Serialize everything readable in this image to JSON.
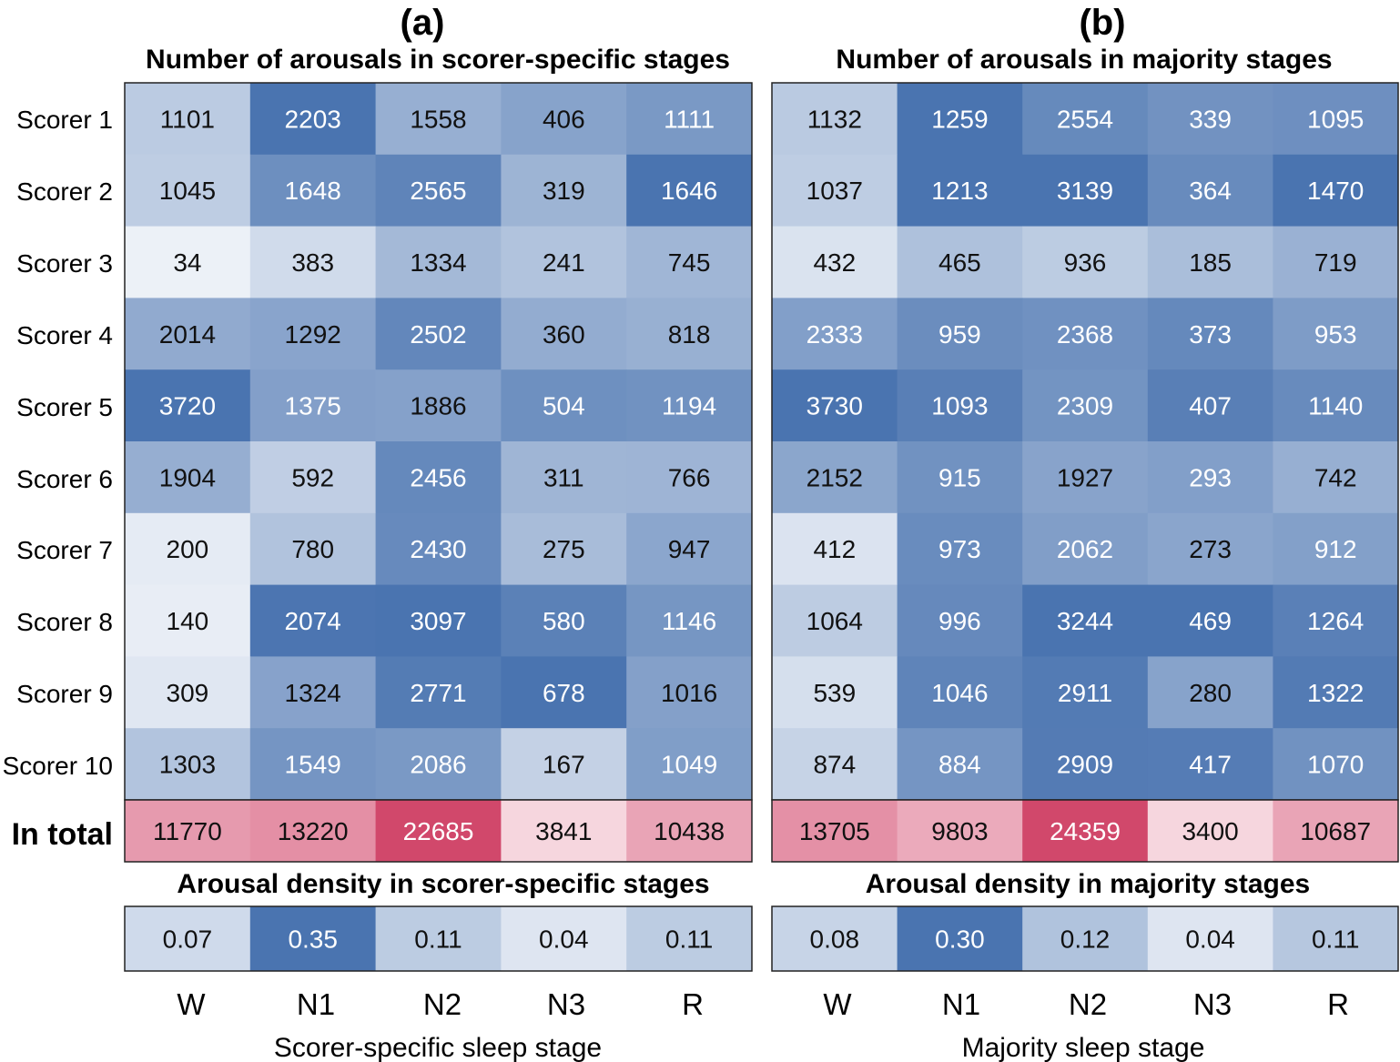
{
  "figure": {
    "panels": [
      {
        "letter": "(a)",
        "title_counts": "Number of arousals in scorer-specific stages",
        "title_density": "Arousal density in scorer-specific stages",
        "xlabel": "Scorer-specific sleep stage"
      },
      {
        "letter": "(b)",
        "title_counts": "Number of arousals in majority stages",
        "title_density": "Arousal density in majority stages",
        "xlabel": "Majority sleep stage"
      }
    ],
    "row_labels": [
      "Scorer 1",
      "Scorer 2",
      "Scorer 3",
      "Scorer 4",
      "Scorer 5",
      "Scorer 6",
      "Scorer 7",
      "Scorer 8",
      "Scorer 9",
      "Scorer 10"
    ],
    "total_label": "In total",
    "stages": [
      "W",
      "N1",
      "N2",
      "N3",
      "R"
    ]
  },
  "chart_data": [
    {
      "type": "heatmap",
      "title": "Number of arousals in scorer-specific stages",
      "categories": [
        "W",
        "N1",
        "N2",
        "N3",
        "R"
      ],
      "rows": [
        "Scorer 1",
        "Scorer 2",
        "Scorer 3",
        "Scorer 4",
        "Scorer 5",
        "Scorer 6",
        "Scorer 7",
        "Scorer 8",
        "Scorer 9",
        "Scorer 10"
      ],
      "values": [
        [
          1101,
          2203,
          1558,
          406,
          1111
        ],
        [
          1045,
          1648,
          2565,
          319,
          1646
        ],
        [
          34,
          383,
          1334,
          241,
          745
        ],
        [
          2014,
          1292,
          2502,
          360,
          818
        ],
        [
          3720,
          1375,
          1886,
          504,
          1194
        ],
        [
          1904,
          592,
          2456,
          311,
          766
        ],
        [
          200,
          780,
          2430,
          275,
          947
        ],
        [
          140,
          2074,
          3097,
          580,
          1146
        ],
        [
          309,
          1324,
          2771,
          678,
          1016
        ],
        [
          1303,
          1549,
          2086,
          167,
          1049
        ]
      ],
      "totals": [
        11770,
        13220,
        22685,
        3841,
        10438
      ],
      "density_title": "Arousal density in scorer-specific stages",
      "density": [
        "0.07",
        "0.35",
        "0.11",
        "0.04",
        "0.11"
      ],
      "xlabel": "Scorer-specific sleep stage",
      "colormap": {
        "low": "#eef2f8",
        "high": "#4a74b0",
        "total_low": "#fbe9ee",
        "total_high": "#d1486b"
      }
    },
    {
      "type": "heatmap",
      "title": "Number of arousals in majority stages",
      "categories": [
        "W",
        "N1",
        "N2",
        "N3",
        "R"
      ],
      "rows": [
        "Scorer 1",
        "Scorer 2",
        "Scorer 3",
        "Scorer 4",
        "Scorer 5",
        "Scorer 6",
        "Scorer 7",
        "Scorer 8",
        "Scorer 9",
        "Scorer 10"
      ],
      "values": [
        [
          1132,
          1259,
          2554,
          339,
          1095
        ],
        [
          1037,
          1213,
          3139,
          364,
          1470
        ],
        [
          432,
          465,
          936,
          185,
          719
        ],
        [
          2333,
          959,
          2368,
          373,
          953
        ],
        [
          3730,
          1093,
          2309,
          407,
          1140
        ],
        [
          2152,
          915,
          1927,
          293,
          742
        ],
        [
          412,
          973,
          2062,
          273,
          912
        ],
        [
          1064,
          996,
          3244,
          469,
          1264
        ],
        [
          539,
          1046,
          2911,
          280,
          1322
        ],
        [
          874,
          884,
          2909,
          417,
          1070
        ]
      ],
      "totals": [
        13705,
        9803,
        24359,
        3400,
        10687
      ],
      "density_title": "Arousal density in majority stages",
      "density": [
        "0.08",
        "0.30",
        "0.12",
        "0.04",
        "0.11"
      ],
      "xlabel": "Majority sleep stage",
      "colormap": {
        "low": "#eef2f8",
        "high": "#4a74b0",
        "total_low": "#fbe9ee",
        "total_high": "#d1486b"
      }
    }
  ]
}
